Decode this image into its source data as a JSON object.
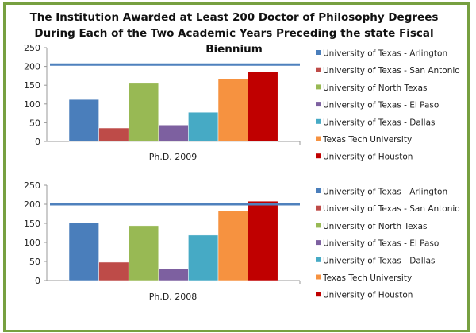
{
  "title": "The Institution Awarded at Least 200 Doctor of Philosophy Degrees During Each of the Two Academic Years Preceding the state Fiscal Biennium",
  "chart_data": [
    {
      "type": "bar",
      "category": "Ph.D. 2009",
      "ylim": [
        0,
        250
      ],
      "yticks": [
        "0",
        "50",
        "100",
        "150",
        "200",
        "250"
      ],
      "threshold_line": 205,
      "legend_position": "right",
      "series": [
        {
          "name": "University of Texas - Arlington",
          "value": 112,
          "color": "#4a7ebb"
        },
        {
          "name": "University of Texas - San Antonio",
          "value": 36,
          "color": "#be4b48"
        },
        {
          "name": "University of North Texas",
          "value": 155,
          "color": "#98b954"
        },
        {
          "name": "University of Texas - El Paso",
          "value": 44,
          "color": "#7d60a0"
        },
        {
          "name": "University of Texas - Dallas",
          "value": 78,
          "color": "#46aac5"
        },
        {
          "name": "Texas Tech University",
          "value": 167,
          "color": "#f69240"
        },
        {
          "name": "University of Houston",
          "value": 186,
          "color": "#c00000"
        }
      ]
    },
    {
      "type": "bar",
      "category": "Ph.D. 2008",
      "ylim": [
        0,
        250
      ],
      "yticks": [
        "0",
        "50",
        "100",
        "150",
        "200",
        "250"
      ],
      "threshold_line": 200,
      "legend_position": "right",
      "series": [
        {
          "name": "University of Texas - Arlington",
          "value": 152,
          "color": "#4a7ebb"
        },
        {
          "name": "University of Texas - San Antonio",
          "value": 48,
          "color": "#be4b48"
        },
        {
          "name": "University of North Texas",
          "value": 144,
          "color": "#98b954"
        },
        {
          "name": "University of Texas - El Paso",
          "value": 31,
          "color": "#7d60a0"
        },
        {
          "name": "University of Texas - Dallas",
          "value": 119,
          "color": "#46aac5"
        },
        {
          "name": "Texas Tech University",
          "value": 183,
          "color": "#f69240"
        },
        {
          "name": "University of Houston",
          "value": 208,
          "color": "#c00000"
        }
      ]
    }
  ]
}
